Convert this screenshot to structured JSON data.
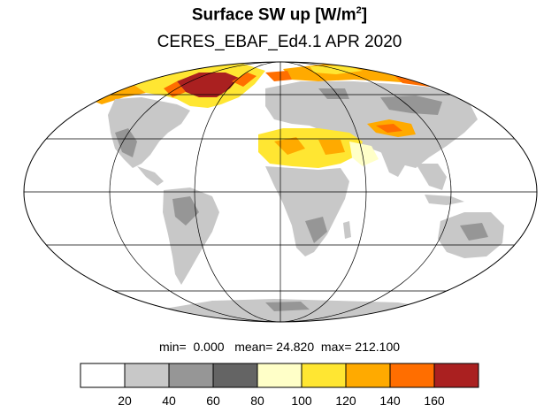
{
  "title": {
    "main": "Surface SW up [W/m",
    "sup": "2",
    "close": "]",
    "subtitle": "CERES_EBAF_Ed4.1 APR 2020"
  },
  "stats": {
    "min_label": "min=",
    "min_value": "0.000",
    "mean_label": "mean=",
    "mean_value": "24.820",
    "max_label": "max=",
    "max_value": "212.100"
  },
  "map": {
    "projection": "Mollweide",
    "grid": true,
    "coastlines": true
  },
  "colorbar": {
    "levels": [
      20,
      40,
      60,
      80,
      100,
      120,
      140,
      160
    ],
    "tick_labels": [
      "20",
      "40",
      "60",
      "80",
      "100",
      "120",
      "140",
      "160"
    ],
    "colors": [
      "#ffffff",
      "#c8c8c8",
      "#969696",
      "#646464",
      "#ffffc8",
      "#ffe632",
      "#ffaa00",
      "#ff6e00",
      "#aa2020"
    ]
  }
}
